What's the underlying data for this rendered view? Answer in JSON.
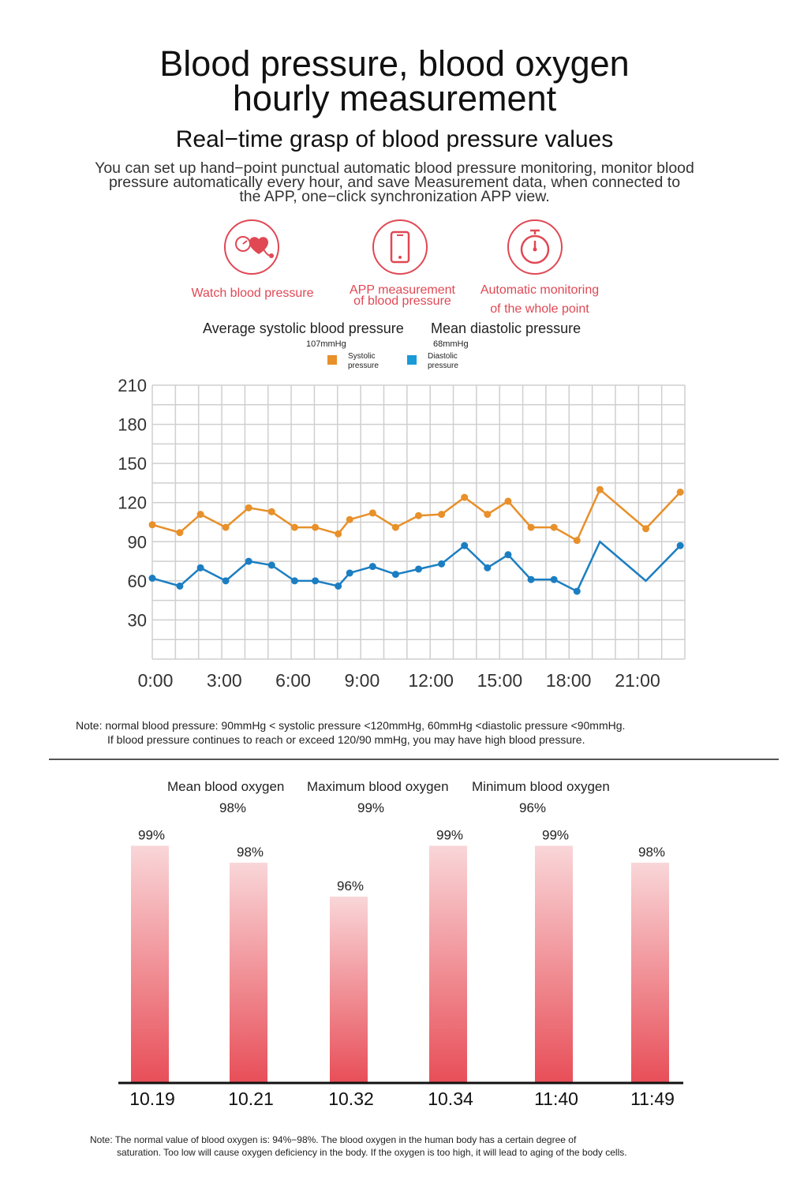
{
  "header": {
    "title_line1": "Blood pressure, blood oxygen",
    "title_line2": "hourly measurement",
    "subtitle": "Real−time grasp of blood pressure values",
    "desc_line1": "You can set up hand−point punctual automatic blood pressure monitoring, monitor blood",
    "desc_line2": "pressure automatically every hour, and save Measurement data, when connected to",
    "desc_line3": "the APP, one−click synchronization APP view."
  },
  "features": [
    {
      "icon": "heart-pressure-gauge-icon",
      "line1": "Watch blood pressure",
      "line2": ""
    },
    {
      "icon": "smartphone-icon",
      "line1": "APP measurement",
      "line2": "of blood pressure"
    },
    {
      "icon": "stopwatch-icon",
      "line1": "Automatic monitoring",
      "line2": "of the whole point"
    }
  ],
  "bp_stats": {
    "systolic_title": "Average systolic blood pressure",
    "systolic_value": "107mmHg",
    "diastolic_title": "Mean diastolic pressure",
    "diastolic_value": "68mmHg"
  },
  "legend": {
    "systolic_line1": "Systolic",
    "systolic_line2": "pressure",
    "diastolic_line1": "Diastolic",
    "diastolic_line2": "pressure"
  },
  "colors": {
    "systolic": "#e8902a",
    "diastolic": "#1b7ec2",
    "accent": "#e04854",
    "grid": "#cfcfcf",
    "bar_top": "#f8d4d6",
    "bar_bottom": "#e8505a"
  },
  "notes": {
    "bp_line1": "Note: normal blood pressure: 90mmHg < systolic pressure <120mmHg, 60mmHg <diastolic pressure <90mmHg.",
    "bp_line2": "If blood pressure continues to reach or exceed 120/90 mmHg, you may have high blood pressure.",
    "ox_line1": "Note: The normal value of blood oxygen is: 94%−98%. The blood oxygen in the human body has a certain degree of",
    "ox_line2": "saturation. Too low will cause oxygen deficiency in the body. If the oxygen is too high, it will lead to aging of the body cells."
  },
  "oxygen_stats": [
    {
      "title": "Mean blood oxygen",
      "value": "98%"
    },
    {
      "title": "Maximum blood oxygen",
      "value": "99%"
    },
    {
      "title": "Minimum blood oxygen",
      "value": "96%"
    }
  ],
  "chart_data": [
    {
      "type": "line",
      "ylim": [
        0,
        210
      ],
      "yticks": [
        30,
        60,
        90,
        120,
        150,
        180,
        210
      ],
      "xlim": [
        0,
        23.2
      ],
      "xticks": [
        {
          "x": 0,
          "label": "0:00"
        },
        {
          "x": 3,
          "label": "3:00"
        },
        {
          "x": 6,
          "label": "6:00"
        },
        {
          "x": 9,
          "label": "9:00"
        },
        {
          "x": 12,
          "label": "12:00"
        },
        {
          "x": 15,
          "label": "15:00"
        },
        {
          "x": 18,
          "label": "18:00"
        },
        {
          "x": 21,
          "label": "21:00"
        }
      ],
      "grid": true,
      "legend_position": "top-center",
      "series": [
        {
          "name": "Systolic pressure",
          "x": [
            0,
            1.2,
            2.1,
            3.2,
            4.2,
            5.2,
            6.2,
            7.1,
            8.1,
            8.6,
            9.6,
            10.6,
            11.6,
            12.6,
            13.6,
            14.6,
            15.5,
            16.5,
            17.5,
            18.5,
            19.5,
            21.5,
            23
          ],
          "y": [
            103,
            97,
            111,
            101,
            116,
            113,
            101,
            101,
            96,
            107,
            112,
            101,
            110,
            111,
            124,
            111,
            121,
            101,
            101,
            91,
            130,
            100,
            128
          ],
          "markers": [
            true,
            true,
            true,
            true,
            true,
            true,
            true,
            true,
            true,
            true,
            true,
            true,
            true,
            true,
            true,
            true,
            true,
            true,
            true,
            true,
            true,
            true,
            true
          ]
        },
        {
          "name": "Diastolic pressure",
          "x": [
            0,
            1.2,
            2.1,
            3.2,
            4.2,
            5.2,
            6.2,
            7.1,
            8.1,
            8.6,
            9.6,
            10.6,
            11.6,
            12.6,
            13.6,
            14.6,
            15.5,
            16.5,
            17.5,
            18.5,
            19.5,
            21.5,
            23
          ],
          "y": [
            62,
            56,
            70,
            60,
            75,
            72,
            60,
            60,
            56,
            66,
            71,
            65,
            69,
            73,
            87,
            70,
            80,
            61,
            61,
            52,
            90,
            60,
            87
          ],
          "markers": [
            true,
            true,
            true,
            true,
            true,
            true,
            true,
            true,
            true,
            true,
            true,
            true,
            true,
            true,
            true,
            true,
            true,
            true,
            true,
            true,
            false,
            false,
            true
          ]
        }
      ]
    },
    {
      "type": "bar",
      "categories": [
        "10.19",
        "10.21",
        "10.32",
        "10.34",
        "11:40",
        "11:49"
      ],
      "values": [
        99,
        98,
        96,
        99,
        99,
        98
      ],
      "data_labels": [
        "99%",
        "98%",
        "96%",
        "99%",
        "99%",
        "98%"
      ],
      "ylim": [
        85,
        100
      ]
    }
  ]
}
